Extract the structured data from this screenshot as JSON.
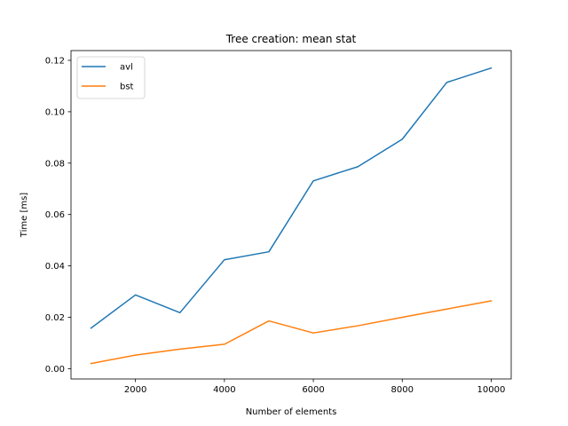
{
  "chart_data": {
    "type": "line",
    "title": "Tree creation: mean stat",
    "xlabel": "Number of elements",
    "ylabel": "Time [ms]",
    "x": [
      1000,
      2000,
      3000,
      4000,
      5000,
      6000,
      7000,
      8000,
      9000,
      10000
    ],
    "xlim": [
      550,
      10450
    ],
    "ylim": [
      -0.004,
      0.1238
    ],
    "xticks": [
      2000,
      4000,
      6000,
      8000,
      10000
    ],
    "xtick_labels": [
      "2000",
      "4000",
      "6000",
      "8000",
      "10000"
    ],
    "yticks": [
      0.0,
      0.02,
      0.04,
      0.06,
      0.08,
      0.1,
      0.12
    ],
    "ytick_labels": [
      "0.00",
      "0.02",
      "0.04",
      "0.06",
      "0.08",
      "0.10",
      "0.12"
    ],
    "grid": false,
    "legend_position": "top-left",
    "series": [
      {
        "name": "avl",
        "color": "#1f77b4",
        "values": [
          0.0158,
          0.0287,
          0.0218,
          0.0424,
          0.0455,
          0.0731,
          0.0786,
          0.0893,
          0.1114,
          0.117
        ]
      },
      {
        "name": "bst",
        "color": "#ff7f0e",
        "values": [
          0.002,
          0.0053,
          0.0076,
          0.0095,
          0.0186,
          0.0139,
          0.0167,
          0.02,
          0.0232,
          0.0264
        ]
      }
    ]
  }
}
